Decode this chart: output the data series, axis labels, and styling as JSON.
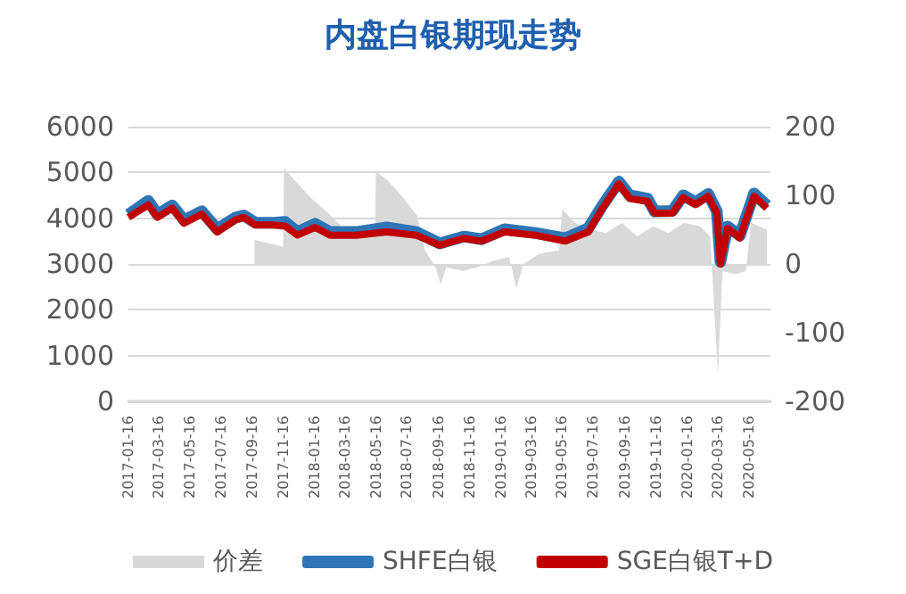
{
  "chart_data": {
    "type": "line",
    "title": "内盘白银期现走势",
    "xlim": [
      "2017-01-16",
      "2020-06-27"
    ],
    "xticks": [
      "2017-01-16",
      "2017-03-16",
      "2017-05-16",
      "2017-07-16",
      "2017-09-16",
      "2017-11-16",
      "2018-01-16",
      "2018-03-16",
      "2018-05-16",
      "2018-07-16",
      "2018-09-16",
      "2018-11-16",
      "2019-01-16",
      "2019-03-16",
      "2019-05-16",
      "2019-07-16",
      "2019-09-16",
      "2019-11-16",
      "2020-01-16",
      "2020-03-16",
      "2020-05-16"
    ],
    "ylim": [
      0,
      6000
    ],
    "yticks": [
      0,
      1000,
      2000,
      3000,
      4000,
      5000,
      6000
    ],
    "y2lim": [
      -200,
      200
    ],
    "y2ticks": [
      -200,
      -100,
      0,
      100,
      200
    ],
    "grid": "y",
    "legend": "bottom",
    "marker": "none",
    "series": [
      {
        "name": "价差",
        "type": "area",
        "axis": "y2",
        "color": "#d9d9d9",
        "x": [
          "2017-09-20",
          "2017-10-20",
          "2017-11-15",
          "2017-11-17",
          "2017-12-10",
          "2018-01-10",
          "2018-02-10",
          "2018-03-10",
          "2018-04-10",
          "2018-05-14",
          "2018-05-16",
          "2018-06-10",
          "2018-07-10",
          "2018-08-05",
          "2018-08-20",
          "2018-09-10",
          "2018-09-20",
          "2018-10-01",
          "2018-11-01",
          "2018-12-01",
          "2019-01-01",
          "2019-02-01",
          "2019-02-15",
          "2019-03-01",
          "2019-04-01",
          "2019-05-10",
          "2019-05-16",
          "2019-06-10",
          "2019-07-10",
          "2019-08-10",
          "2019-09-10",
          "2019-10-10",
          "2019-11-10",
          "2019-12-10",
          "2020-01-10",
          "2020-02-10",
          "2020-03-01",
          "2020-03-16",
          "2020-03-25",
          "2020-04-20",
          "2020-05-10",
          "2020-05-20",
          "2020-06-20"
        ],
        "values": [
          35,
          30,
          25,
          140,
          120,
          95,
          75,
          55,
          40,
          40,
          135,
          120,
          95,
          70,
          20,
          -5,
          -30,
          -5,
          -10,
          -5,
          5,
          10,
          -35,
          0,
          15,
          20,
          80,
          60,
          50,
          45,
          60,
          40,
          55,
          45,
          60,
          55,
          40,
          -160,
          -10,
          -15,
          -10,
          60,
          50
        ]
      },
      {
        "name": "SHFE白银",
        "color": "#2e75b6",
        "x": [
          "2017-01-16",
          "2017-02-24",
          "2017-03-14",
          "2017-04-12",
          "2017-05-05",
          "2017-06-09",
          "2017-07-09",
          "2017-08-13",
          "2017-08-30",
          "2017-09-22",
          "2017-10-27",
          "2017-11-19",
          "2017-12-13",
          "2018-01-17",
          "2018-02-15",
          "2018-04-08",
          "2018-06-06",
          "2018-08-03",
          "2018-09-18",
          "2018-11-04",
          "2018-12-09",
          "2019-01-23",
          "2019-03-24",
          "2019-05-22",
          "2019-07-06",
          "2019-08-03",
          "2019-09-04",
          "2019-09-25",
          "2019-10-30",
          "2019-11-13",
          "2019-12-18",
          "2020-01-08",
          "2020-02-01",
          "2020-02-26",
          "2020-03-14",
          "2020-03-21",
          "2020-04-04",
          "2020-04-28",
          "2020-05-26",
          "2020-06-20"
        ],
        "values": [
          4080,
          4380,
          4080,
          4280,
          3960,
          4150,
          3760,
          4010,
          4060,
          3900,
          3900,
          3920,
          3700,
          3880,
          3700,
          3700,
          3800,
          3700,
          3450,
          3600,
          3540,
          3760,
          3680,
          3560,
          3780,
          4280,
          4800,
          4500,
          4430,
          4150,
          4160,
          4500,
          4350,
          4530,
          4150,
          3050,
          3820,
          3620,
          4540,
          4280
        ]
      },
      {
        "name": "SGE白银T+D",
        "color": "#c00000",
        "x": [
          "2017-01-16",
          "2017-02-24",
          "2017-03-14",
          "2017-04-12",
          "2017-05-05",
          "2017-06-09",
          "2017-07-09",
          "2017-08-13",
          "2017-08-30",
          "2017-09-22",
          "2017-10-27",
          "2017-11-19",
          "2017-12-13",
          "2018-01-17",
          "2018-02-15",
          "2018-04-08",
          "2018-06-06",
          "2018-08-03",
          "2018-09-18",
          "2018-11-04",
          "2018-12-09",
          "2019-01-23",
          "2019-03-24",
          "2019-05-22",
          "2019-07-06",
          "2019-08-03",
          "2019-09-04",
          "2019-09-25",
          "2019-10-30",
          "2019-11-13",
          "2019-12-18",
          "2020-01-08",
          "2020-02-01",
          "2020-02-26",
          "2020-03-14",
          "2020-03-21",
          "2020-04-04",
          "2020-04-28",
          "2020-05-26",
          "2020-06-20"
        ],
        "values": [
          4020,
          4290,
          4020,
          4220,
          3890,
          4090,
          3700,
          3960,
          4020,
          3850,
          3850,
          3830,
          3630,
          3800,
          3630,
          3630,
          3700,
          3630,
          3410,
          3560,
          3500,
          3700,
          3630,
          3500,
          3700,
          4220,
          4750,
          4430,
          4370,
          4110,
          4110,
          4450,
          4300,
          4480,
          4110,
          3000,
          3780,
          3570,
          4480,
          4220
        ]
      }
    ]
  }
}
